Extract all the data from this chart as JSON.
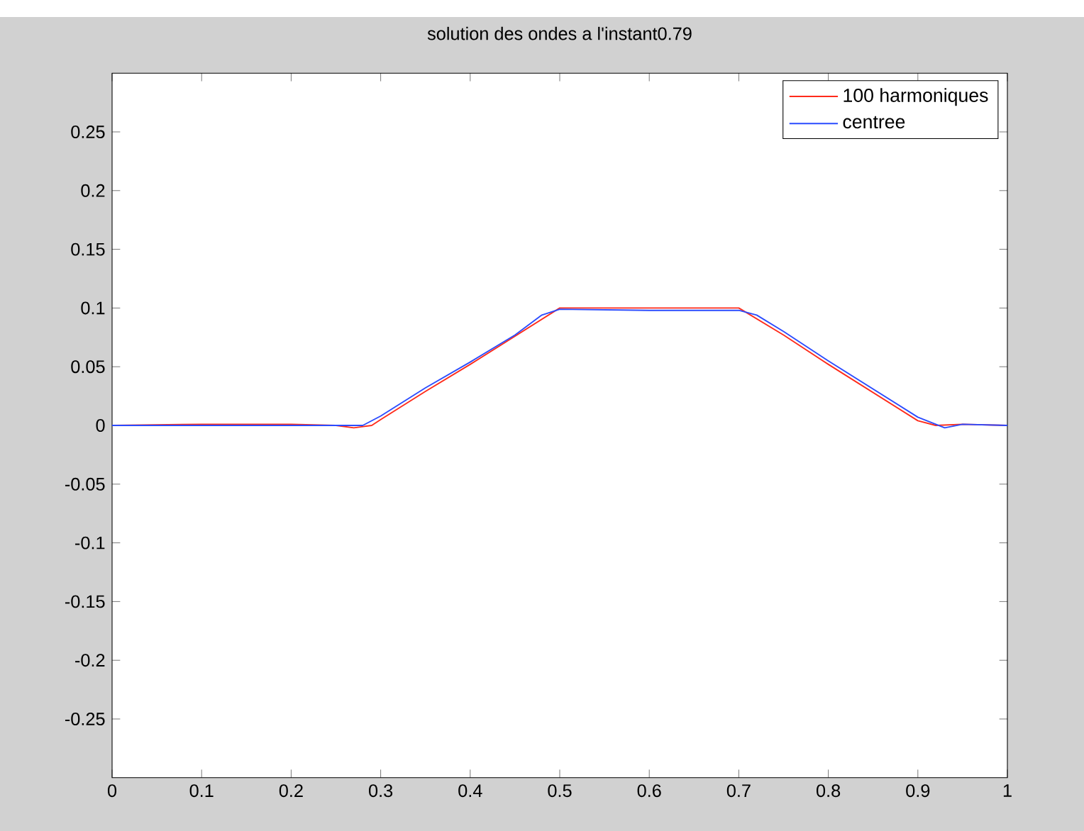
{
  "chart_data": {
    "type": "line",
    "title": "solution des ondes a l'instant0.79",
    "xlim": [
      0,
      1
    ],
    "ylim": [
      -0.3,
      0.3
    ],
    "xticks": [
      0,
      0.1,
      0.2,
      0.3,
      0.4,
      0.5,
      0.6,
      0.7,
      0.8,
      0.9,
      1
    ],
    "yticks": [
      -0.25,
      -0.2,
      -0.15,
      -0.1,
      -0.05,
      0,
      0.05,
      0.1,
      0.15,
      0.2,
      0.25
    ],
    "grid": false,
    "legend": "top right",
    "marker": "none",
    "line_style": "solid",
    "series": [
      {
        "name": "100 harmoniques",
        "color": "#ff2a1a",
        "x": [
          0,
          0.1,
          0.2,
          0.25,
          0.27,
          0.29,
          0.3,
          0.35,
          0.4,
          0.45,
          0.5,
          0.55,
          0.6,
          0.65,
          0.7,
          0.75,
          0.8,
          0.85,
          0.9,
          0.92,
          0.95,
          1
        ],
        "values": [
          0,
          0.001,
          0.001,
          0,
          -0.002,
          0,
          0.005,
          0.029,
          0.052,
          0.076,
          0.1,
          0.1,
          0.1,
          0.1,
          0.1,
          0.077,
          0.052,
          0.028,
          0.004,
          0,
          0.001,
          0
        ]
      },
      {
        "name": "centree",
        "color": "#2a4bff",
        "x": [
          0,
          0.1,
          0.2,
          0.28,
          0.3,
          0.35,
          0.4,
          0.45,
          0.48,
          0.5,
          0.6,
          0.7,
          0.72,
          0.75,
          0.8,
          0.85,
          0.9,
          0.93,
          0.95,
          1
        ],
        "values": [
          0,
          0,
          0,
          0,
          0.008,
          0.032,
          0.054,
          0.077,
          0.094,
          0.099,
          0.098,
          0.098,
          0.094,
          0.08,
          0.055,
          0.031,
          0.007,
          -0.002,
          0.001,
          0
        ]
      }
    ]
  }
}
